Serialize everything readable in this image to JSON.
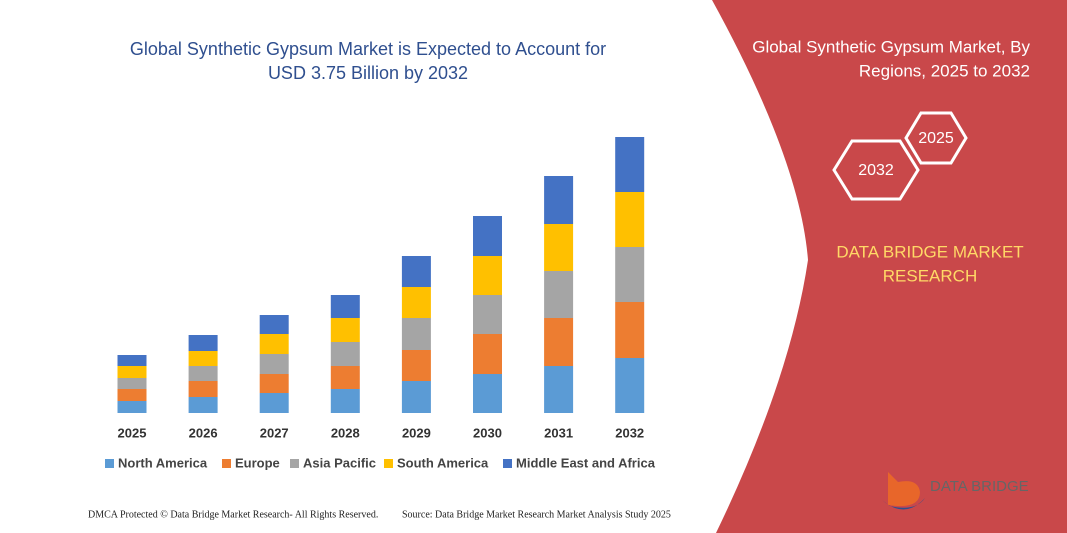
{
  "chart_data": {
    "type": "stacked-bar",
    "title": [
      "Global Synthetic Gypsum Market is Expected to Account for",
      "USD 3.75 Billion by 2032"
    ],
    "categories": [
      "2025",
      "2026",
      "2027",
      "2028",
      "2029",
      "2030",
      "2031",
      "2032"
    ],
    "series": [
      {
        "name": "North America",
        "color": "#5b9bd5",
        "values": [
          12,
          16,
          20,
          24,
          32,
          39,
          47,
          55
        ]
      },
      {
        "name": "Europe",
        "color": "#ed7d31",
        "values": [
          12,
          16,
          19,
          23,
          31,
          40,
          48,
          56
        ]
      },
      {
        "name": "Asia Pacific",
        "color": "#a5a5a5",
        "values": [
          11,
          15,
          20,
          24,
          32,
          39,
          47,
          55
        ]
      },
      {
        "name": "South America",
        "color": "#ffc000",
        "values": [
          12,
          15,
          20,
          24,
          31,
          39,
          47,
          55
        ]
      },
      {
        "name": "Middle East and Africa",
        "color": "#4472c4",
        "values": [
          11,
          16,
          19,
          23,
          31,
          40,
          48,
          55
        ]
      }
    ]
  },
  "panel": {
    "title": [
      "Global Synthetic Gypsum Market, By",
      "Regions, 2025 to 2032"
    ],
    "hex_back": "2025",
    "hex_front": "2032",
    "brand": [
      "DATA BRIDGE MARKET",
      "RESEARCH"
    ]
  },
  "logo": {
    "text": "DATA BRIDGE"
  },
  "footer": {
    "left": "DMCA Protected © Data Bridge Market Research- All Rights Reserved.",
    "right": "Source: Data Bridge Market Research  Market Analysis Study 2025"
  }
}
